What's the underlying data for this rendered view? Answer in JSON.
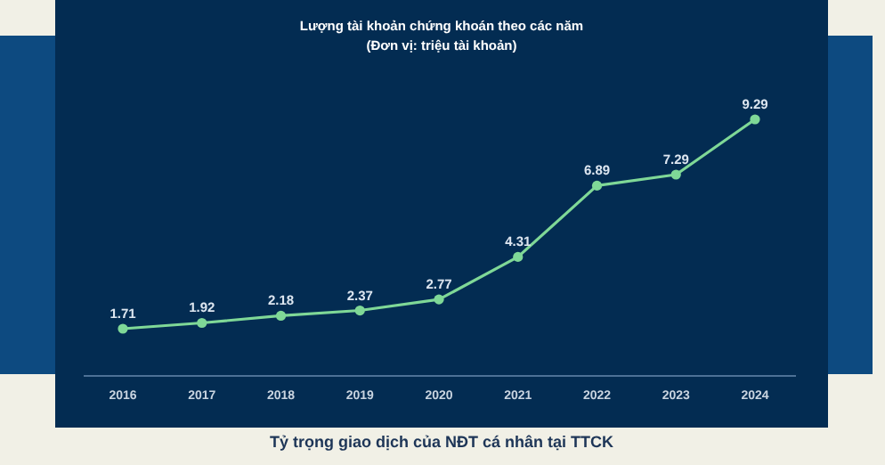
{
  "chart_data": {
    "type": "line",
    "title": "Lượng tài khoản chứng khoán theo các năm",
    "subtitle": "(Đơn vị: triệu tài khoản)",
    "categories": [
      "2016",
      "2017",
      "2018",
      "2019",
      "2020",
      "2021",
      "2022",
      "2023",
      "2024"
    ],
    "series": [
      {
        "color": "#7fd897",
        "values": [
          1.71,
          1.92,
          2.18,
          2.37,
          2.77,
          4.31,
          6.89,
          7.29,
          9.29
        ]
      }
    ],
    "tick_labels": "x",
    "data_labels": true,
    "marker": "circle",
    "line_style": "solid",
    "annotations": [
      "Tỷ trọng giao dịch của NĐT cá nhân tại TTCK"
    ]
  }
}
